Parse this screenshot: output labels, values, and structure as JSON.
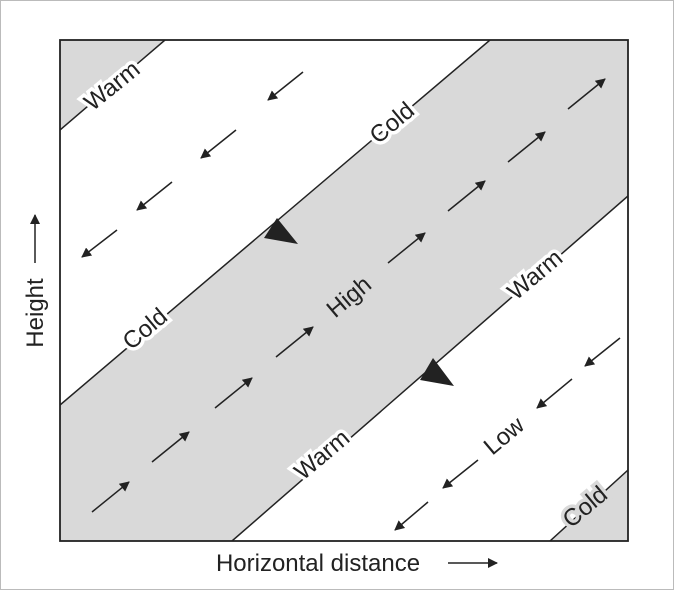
{
  "colors": {
    "band_fill": "#d9d9d9",
    "line": "#222222",
    "background": "#ffffff"
  },
  "axes": {
    "x_label": "Horizontal distance",
    "y_label": "Height"
  },
  "labels": {
    "warm_top_left": "Warm",
    "cold_upper_band_edge": "Cold",
    "cold_lower_band_edge": "Cold",
    "high": "High",
    "warm_band_lower_right": "Warm",
    "warm_band_lower_left": "Warm",
    "low": "Low",
    "cold_bottom_right": "Cold"
  }
}
